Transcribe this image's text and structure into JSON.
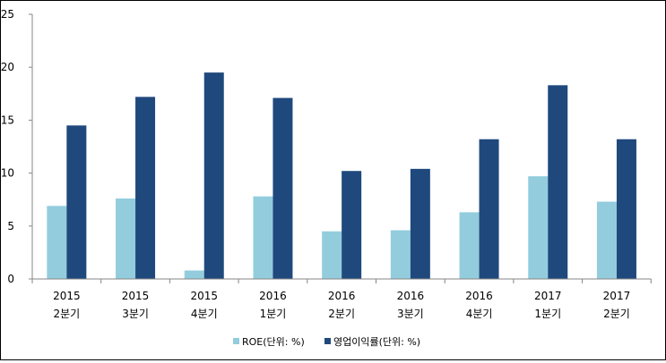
{
  "chart_data": {
    "type": "bar",
    "title": "",
    "xlabel": "",
    "ylabel": "",
    "ylim": [
      0,
      25
    ],
    "yticks": [
      0,
      5,
      10,
      15,
      20,
      25
    ],
    "grid": false,
    "legend_position": "bottom",
    "categories": [
      [
        "2015",
        "2분기"
      ],
      [
        "2015",
        "3분기"
      ],
      [
        "2015",
        "4분기"
      ],
      [
        "2016",
        "1분기"
      ],
      [
        "2016",
        "2분기"
      ],
      [
        "2016",
        "3분기"
      ],
      [
        "2016",
        "4분기"
      ],
      [
        "2017",
        "1분기"
      ],
      [
        "2017",
        "2분기"
      ]
    ],
    "series": [
      {
        "name": "ROE(단위: %)",
        "color": "#93CDDD",
        "values": [
          6.9,
          7.6,
          0.8,
          7.8,
          4.5,
          4.6,
          6.3,
          9.7,
          7.3
        ]
      },
      {
        "name": "영업이익률(단위: %)",
        "color": "#1F497D",
        "values": [
          14.5,
          17.2,
          19.5,
          17.1,
          10.2,
          10.4,
          13.2,
          18.3,
          13.2
        ]
      }
    ]
  }
}
